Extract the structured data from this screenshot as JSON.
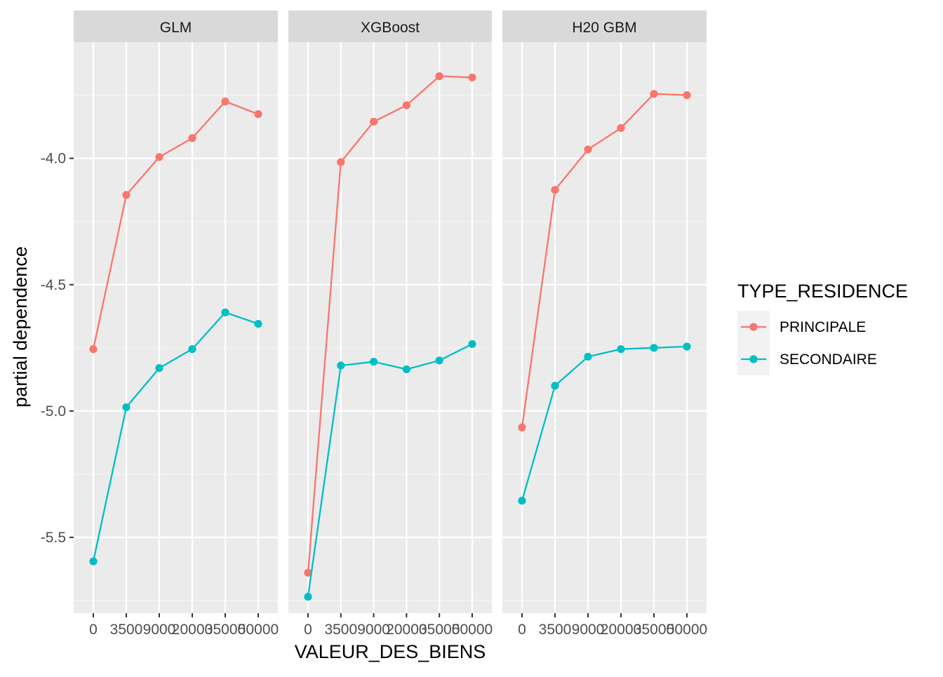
{
  "chart_data": {
    "type": "line",
    "facet_labels": [
      "GLM",
      "XGBoost",
      "H20 GBM"
    ],
    "x_tick_labels": [
      "0",
      "3500",
      "9000",
      "20000",
      "35000",
      "50000"
    ],
    "xlabel": "VALEUR_DES_BIENS",
    "ylabel": "partial dependence",
    "y_ticks": [
      -5.5,
      -5.0,
      -4.5,
      -4.0
    ],
    "y_tick_labels": [
      "-5.5",
      "-5.0",
      "-4.5",
      "-4.0"
    ],
    "ylim": [
      -5.8,
      -3.54
    ],
    "grid": true,
    "legend": {
      "title": "TYPE_RESIDENCE",
      "position": "right",
      "entries": [
        "PRINCIPALE",
        "SECONDAIRE"
      ]
    },
    "series": [
      {
        "name": "PRINCIPALE",
        "color": "#F8766D",
        "panels": [
          [
            -4.755,
            -4.145,
            -3.995,
            -3.92,
            -3.775,
            -3.825
          ],
          [
            -5.64,
            -4.015,
            -3.855,
            -3.79,
            -3.675,
            -3.68
          ],
          [
            -5.065,
            -4.125,
            -3.965,
            -3.88,
            -3.745,
            -3.75
          ]
        ]
      },
      {
        "name": "SECONDAIRE",
        "color": "#00BFC4",
        "panels": [
          [
            -5.595,
            -4.985,
            -4.83,
            -4.755,
            -4.61,
            -4.655
          ],
          [
            -5.735,
            -4.82,
            -4.805,
            -4.835,
            -4.8,
            -4.735
          ],
          [
            -5.355,
            -4.9,
            -4.785,
            -4.755,
            -4.75,
            -4.745
          ]
        ]
      }
    ]
  }
}
